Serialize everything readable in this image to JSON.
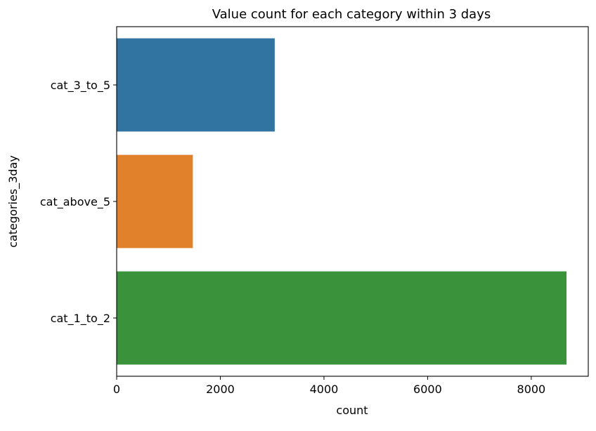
{
  "chart_data": {
    "type": "bar",
    "orientation": "horizontal",
    "title": "Value count for each category within 3 days",
    "xlabel": "count",
    "ylabel": "categories_3day",
    "categories": [
      "cat_3_to_5",
      "cat_above_5",
      "cat_1_to_2"
    ],
    "values": [
      3050,
      1470,
      8680
    ],
    "colors": [
      "#3274a1",
      "#e1812c",
      "#3a923a"
    ],
    "xlim": [
      0,
      9100
    ],
    "xticks": [
      0,
      2000,
      4000,
      6000,
      8000
    ],
    "grid": false,
    "legend": false
  }
}
